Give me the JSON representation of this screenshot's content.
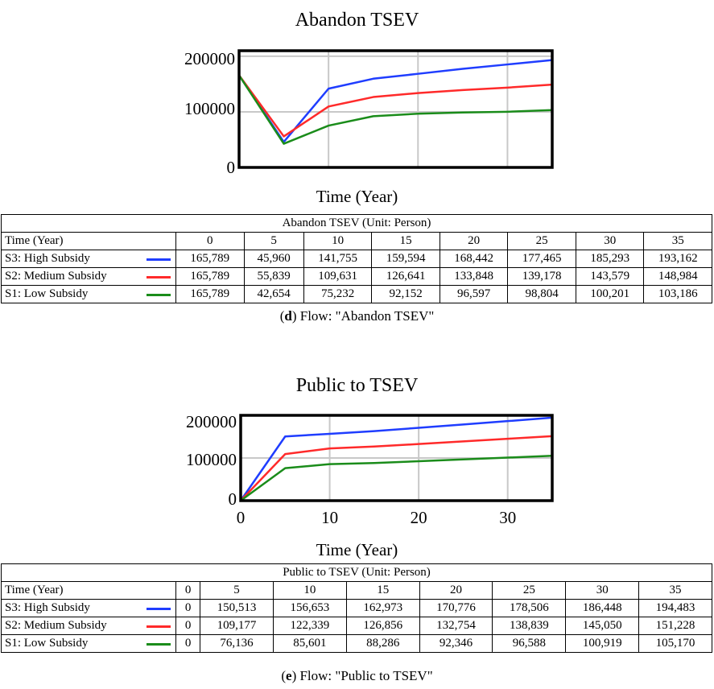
{
  "chart_data": [
    {
      "type": "line",
      "title": "Abandon TSEV",
      "xlabel": "Time (Year)",
      "ylabel": "",
      "x": [
        0,
        5,
        10,
        15,
        20,
        25,
        30,
        35
      ],
      "xlim": [
        0,
        35
      ],
      "ylim": [
        0,
        210000
      ],
      "yticks": [
        "200000",
        "100000",
        "0"
      ],
      "xticks": [],
      "grid": true,
      "series": [
        {
          "name": "S3: High Subsidy",
          "color": "#1f3dff",
          "values": [
            165789,
            45960,
            141755,
            159594,
            168442,
            177465,
            185293,
            193162
          ]
        },
        {
          "name": "S2: Medium Subsidy",
          "color": "#ff2a2a",
          "values": [
            165789,
            55839,
            109631,
            126641,
            133848,
            139178,
            143579,
            148984
          ]
        },
        {
          "name": "S1: Low Subsidy",
          "color": "#1a8c1a",
          "values": [
            165789,
            42654,
            75232,
            92152,
            96597,
            98804,
            100201,
            103186
          ]
        }
      ]
    },
    {
      "type": "line",
      "title": "Public to TSEV",
      "xlabel": "Time (Year)",
      "ylabel": "",
      "x": [
        0,
        5,
        10,
        15,
        20,
        25,
        30,
        35
      ],
      "xlim": [
        0,
        35
      ],
      "ylim": [
        0,
        200000
      ],
      "yticks": [
        "200000",
        "100000",
        "0"
      ],
      "xticks": [
        "0",
        "10",
        "20",
        "30"
      ],
      "grid": true,
      "series": [
        {
          "name": "S3: High Subsidy",
          "color": "#1f3dff",
          "values": [
            0,
            150513,
            156653,
            162973,
            170776,
            178506,
            186448,
            194483
          ]
        },
        {
          "name": "S2: Medium Subsidy",
          "color": "#ff2a2a",
          "values": [
            0,
            109177,
            122339,
            126856,
            132754,
            138839,
            145050,
            151228
          ]
        },
        {
          "name": "S1: Low Subsidy",
          "color": "#1a8c1a",
          "values": [
            0,
            76136,
            85601,
            88286,
            92346,
            96588,
            100919,
            105170
          ]
        }
      ]
    }
  ],
  "tables": [
    {
      "title": "Abandon TSEV (Unit: Person)",
      "header": [
        "Time (Year)",
        "0",
        "5",
        "10",
        "15",
        "20",
        "25",
        "30",
        "35"
      ],
      "rows": [
        {
          "label": "S3: High Subsidy",
          "color": "#1f3dff",
          "cells": [
            "165,789",
            "45,960",
            "141,755",
            "159,594",
            "168,442",
            "177,465",
            "185,293",
            "193,162"
          ]
        },
        {
          "label": "S2: Medium Subsidy",
          "color": "#ff2a2a",
          "cells": [
            "165,789",
            "55,839",
            "109,631",
            "126,641",
            "133,848",
            "139,178",
            "143,579",
            "148,984"
          ]
        },
        {
          "label": "S1: Low Subsidy",
          "color": "#1a8c1a",
          "cells": [
            "165,789",
            "42,654",
            "75,232",
            "92,152",
            "96,597",
            "98,804",
            "100,201",
            "103,186"
          ]
        }
      ]
    },
    {
      "title": "Public to TSEV (Unit: Person)",
      "header": [
        "Time (Year)",
        "0",
        "5",
        "10",
        "15",
        "20",
        "25",
        "30",
        "35"
      ],
      "rows": [
        {
          "label": "S3: High Subsidy",
          "color": "#1f3dff",
          "cells": [
            "0",
            "150,513",
            "156,653",
            "162,973",
            "170,776",
            "178,506",
            "186,448",
            "194,483"
          ]
        },
        {
          "label": "S2: Medium Subsidy",
          "color": "#ff2a2a",
          "cells": [
            "0",
            "109,177",
            "122,339",
            "126,856",
            "132,754",
            "138,839",
            "145,050",
            "151,228"
          ]
        },
        {
          "label": "S1: Low Subsidy",
          "color": "#1a8c1a",
          "cells": [
            "0",
            "76,136",
            "85,601",
            "88,286",
            "92,346",
            "96,588",
            "100,919",
            "105,170"
          ]
        }
      ]
    }
  ],
  "captions": [
    {
      "letter": "d",
      "text": ") Flow: \"Abandon TSEV\""
    },
    {
      "letter": "e",
      "text": ") Flow: \"Public to TSEV\""
    }
  ]
}
